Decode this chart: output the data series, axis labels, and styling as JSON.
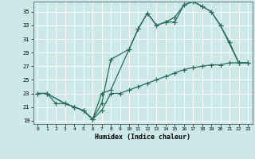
{
  "xlabel": "Humidex (Indice chaleur)",
  "bg_color": "#cce8e8",
  "grid_color": "#ffffff",
  "line_color": "#2a6b5a",
  "xlim": [
    -0.5,
    23.5
  ],
  "ylim": [
    18.5,
    36.5
  ],
  "xticks": [
    0,
    1,
    2,
    3,
    4,
    5,
    6,
    7,
    8,
    9,
    10,
    11,
    12,
    13,
    14,
    15,
    16,
    17,
    18,
    19,
    20,
    21,
    22,
    23
  ],
  "yticks": [
    19,
    21,
    23,
    25,
    27,
    29,
    31,
    33,
    35
  ],
  "line1_x": [
    0,
    1,
    2,
    3,
    4,
    5,
    6,
    7,
    8,
    9,
    10,
    11,
    12,
    13,
    14,
    15,
    16,
    17,
    18,
    19,
    20,
    21,
    22,
    23
  ],
  "line1_y": [
    23.0,
    23.0,
    21.5,
    21.5,
    21.0,
    20.5,
    19.2,
    20.5,
    23.0,
    23.0,
    23.5,
    24.0,
    24.5,
    25.0,
    25.5,
    26.0,
    26.5,
    26.8,
    27.0,
    27.2,
    27.2,
    27.5,
    27.5,
    27.5
  ],
  "line2_x": [
    0,
    1,
    3,
    4,
    5,
    6,
    7,
    8,
    10,
    11,
    12,
    13,
    14,
    15,
    16,
    17,
    18,
    19,
    20,
    21,
    22,
    23
  ],
  "line2_y": [
    23.0,
    23.0,
    21.5,
    21.0,
    20.5,
    19.2,
    21.5,
    28.0,
    29.5,
    32.5,
    34.8,
    33.0,
    33.5,
    33.5,
    36.0,
    36.5,
    35.8,
    35.0,
    33.0,
    30.5,
    27.5,
    27.5
  ],
  "line3_x": [
    0,
    1,
    3,
    4,
    5,
    6,
    7,
    8,
    10,
    11,
    12,
    13,
    14,
    15,
    16,
    17,
    18,
    19,
    20,
    22,
    23
  ],
  "line3_y": [
    23.0,
    23.0,
    21.5,
    21.0,
    20.5,
    19.2,
    23.0,
    23.5,
    29.5,
    32.5,
    34.8,
    33.0,
    33.5,
    34.2,
    36.0,
    36.5,
    35.8,
    35.0,
    33.0,
    27.5,
    27.5
  ]
}
